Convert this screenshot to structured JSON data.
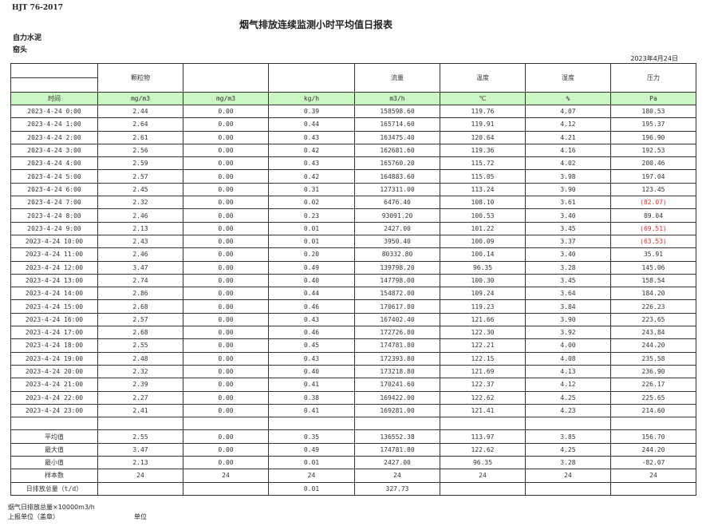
{
  "standard": "HJT  76-2017",
  "title": "烟气排放连续监测小时平均值日报表",
  "company": "自力水泥",
  "site": "窑头",
  "report_date": "2023年4月24日",
  "headers": [
    "",
    "颗粒物",
    "",
    "",
    "流量",
    "温度",
    "湿度",
    "压力"
  ],
  "units": [
    "时间",
    "mg/m3",
    "mg/m3",
    "kg/h",
    "m3/h",
    "℃",
    "%",
    "Pa"
  ],
  "rows": [
    [
      "2023-4-24 0:00",
      "2.44",
      "0.00",
      "0.39",
      "158598.60",
      "119.76",
      "4.07",
      "180.53"
    ],
    [
      "2023-4-24 1:00",
      "2.64",
      "0.00",
      "0.44",
      "165714.60",
      "119.91",
      "4.12",
      "195.37"
    ],
    [
      "2023-4-24 2:00",
      "2.61",
      "0.00",
      "0.43",
      "163475.40",
      "120.64",
      "4.21",
      "196.90"
    ],
    [
      "2023-4-24 3:00",
      "2.56",
      "0.00",
      "0.42",
      "162681.60",
      "119.36",
      "4.16",
      "192.53"
    ],
    [
      "2023-4-24 4:00",
      "2.59",
      "0.00",
      "0.43",
      "165760.20",
      "115.72",
      "4.02",
      "200.46"
    ],
    [
      "2023-4-24 5:00",
      "2.57",
      "0.00",
      "0.42",
      "164883.60",
      "115.05",
      "3.98",
      "197.04"
    ],
    [
      "2023-4-24 6:00",
      "2.45",
      "0.00",
      "0.31",
      "127311.00",
      "113.24",
      "3.90",
      "123.45"
    ],
    [
      "2023-4-24 7:00",
      "2.32",
      "0.00",
      "0.02",
      "6476.40",
      "108.10",
      "3.61",
      "(82.07)"
    ],
    [
      "2023-4-24 8:00",
      "2.46",
      "0.00",
      "0.23",
      "93091.20",
      "100.53",
      "3.40",
      "89.04"
    ],
    [
      "2023-4-24 9:00",
      "2.13",
      "0.00",
      "0.01",
      "2427.00",
      "101.22",
      "3.45",
      "(69.51)"
    ],
    [
      "2023-4-24 10:00",
      "2.43",
      "0.00",
      "0.01",
      "3950.40",
      "100.09",
      "3.37",
      "(63.53)"
    ],
    [
      "2023-4-24 11:00",
      "2.46",
      "0.00",
      "0.20",
      "80332.80",
      "100.14",
      "3.40",
      "35.91"
    ],
    [
      "2023-4-24 12:00",
      "3.47",
      "0.00",
      "0.49",
      "139798.20",
      "96.35",
      "3.28",
      "145.06"
    ],
    [
      "2023-4-24 13:00",
      "2.74",
      "0.00",
      "0.40",
      "147798.00",
      "100.30",
      "3.45",
      "158.54"
    ],
    [
      "2023-4-24 14:00",
      "2.86",
      "0.00",
      "0.44",
      "154872.00",
      "109.24",
      "3.64",
      "184.20"
    ],
    [
      "2023-4-24 15:00",
      "2.68",
      "0.00",
      "0.46",
      "170617.80",
      "119.23",
      "3.84",
      "226.23"
    ],
    [
      "2023-4-24 16:00",
      "2.57",
      "0.00",
      "0.43",
      "167402.40",
      "121.66",
      "3.90",
      "223.65"
    ],
    [
      "2023-4-24 17:00",
      "2.68",
      "0.00",
      "0.46",
      "172726.80",
      "122.30",
      "3.92",
      "243.84"
    ],
    [
      "2023-4-24 18:00",
      "2.55",
      "0.00",
      "0.45",
      "174781.80",
      "122.21",
      "4.00",
      "244.20"
    ],
    [
      "2023-4-24 19:00",
      "2.48",
      "0.00",
      "0.43",
      "172393.80",
      "122.15",
      "4.08",
      "235.58"
    ],
    [
      "2023-4-24 20:00",
      "2.32",
      "0.00",
      "0.40",
      "173218.80",
      "121.69",
      "4.13",
      "236.90"
    ],
    [
      "2023-4-24 21:00",
      "2.39",
      "0.00",
      "0.41",
      "170241.60",
      "122.37",
      "4.12",
      "226.17"
    ],
    [
      "2023-4-24 22:00",
      "2.27",
      "0.00",
      "0.38",
      "169422.00",
      "122.62",
      "4.25",
      "225.65"
    ],
    [
      "2023-4-24 23:00",
      "2.41",
      "0.00",
      "0.41",
      "169281.00",
      "121.41",
      "4.23",
      "214.60"
    ]
  ],
  "summary": [
    [
      "平均值",
      "2.55",
      "0.00",
      "0.35",
      "136552.38",
      "113.97",
      "3.85",
      "156.70"
    ],
    [
      "最大值",
      "3.47",
      "0.00",
      "0.49",
      "174781.80",
      "122.62",
      "4.25",
      "244.20"
    ],
    [
      "最小值",
      "2.13",
      "0.00",
      "0.01",
      "2427.00",
      "96.35",
      "3.28",
      "-82.07"
    ],
    [
      "样本数",
      "24",
      "24",
      "24",
      "24",
      "24",
      "24",
      "24"
    ],
    [
      "日排放总量（t/d）",
      "",
      "",
      "0.01",
      "327.73",
      "",
      "",
      ""
    ]
  ],
  "negative_color": "#e03030",
  "footer": {
    "note": "烟气日排放总量×10000m3/h",
    "reporter": "上报单位（盖章）",
    "unit": "单位"
  }
}
